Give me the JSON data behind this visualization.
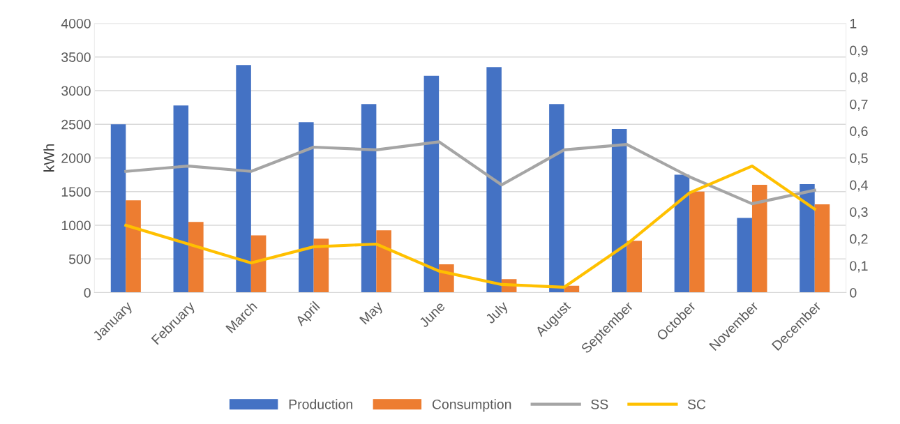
{
  "chart_data": {
    "type": "bar",
    "ylabel": "kWh",
    "categories": [
      "January",
      "February",
      "March",
      "April",
      "May",
      "June",
      "July",
      "August",
      "September",
      "October",
      "November",
      "December"
    ],
    "series": [
      {
        "name": "Production",
        "color": "#4472c4",
        "values": [
          2500,
          2780,
          3380,
          2530,
          2800,
          3220,
          3350,
          2800,
          2430,
          1750,
          1110,
          1610
        ]
      },
      {
        "name": "Consumption",
        "color": "#ed7d31",
        "values": [
          1370,
          1050,
          850,
          800,
          925,
          420,
          200,
          100,
          770,
          1500,
          1600,
          1310
        ]
      },
      {
        "name": "SS",
        "type": "line",
        "axis": "y2",
        "color": "#a5a5a5",
        "values": [
          0.45,
          0.47,
          0.45,
          0.54,
          0.53,
          0.56,
          0.4,
          0.53,
          0.55,
          0.43,
          0.33,
          0.38
        ]
      },
      {
        "name": "SC",
        "type": "line",
        "axis": "y2",
        "color": "#ffc000",
        "values": [
          0.25,
          0.18,
          0.11,
          0.17,
          0.18,
          0.08,
          0.03,
          0.02,
          0.18,
          0.37,
          0.47,
          0.31
        ]
      }
    ],
    "ylim": [
      0,
      4000
    ],
    "yticks": [
      0,
      500,
      1000,
      1500,
      2000,
      2500,
      3000,
      3500,
      4000
    ],
    "y2lim": [
      0,
      1
    ],
    "y2ticks": [
      0,
      {
        "value": 0.1,
        "label": "0,1"
      },
      {
        "value": 0.2,
        "label": "0,2"
      },
      {
        "value": 0.3,
        "label": "0,3"
      },
      {
        "value": 0.4,
        "label": "0,4"
      },
      {
        "value": 0.5,
        "label": "0,5"
      },
      {
        "value": 0.6,
        "label": "0,6"
      },
      {
        "value": 0.7,
        "label": "0,7"
      },
      {
        "value": 0.8,
        "label": "0,8"
      },
      {
        "value": 0.9,
        "label": "0,9"
      },
      1
    ],
    "grid": "y",
    "legend": "bottom",
    "line_style": "solid",
    "marker": "none"
  }
}
